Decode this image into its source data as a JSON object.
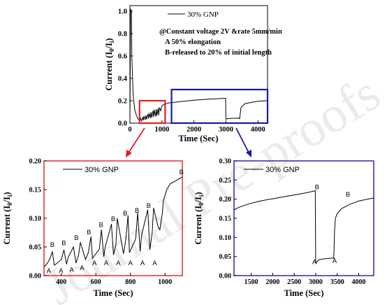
{
  "chart_data": [
    {
      "id": "main",
      "type": "line",
      "legend": "30% GNP",
      "annotations": [
        "@Constant voltage 2V &rate 5mm/min",
        "A  50% elongation",
        "B-released to 20% of initial length"
      ],
      "xlabel": "Time (Sec)",
      "ylabel": "Current (I₀/Iᵢ)",
      "xlim": [
        0,
        4300
      ],
      "ylim": [
        0,
        1.05
      ],
      "xticks": [
        0,
        1000,
        2000,
        3000,
        4000
      ],
      "yticks": [
        0.0,
        0.2,
        0.4,
        0.6,
        0.8,
        1.0
      ],
      "series": [
        {
          "x": [
            0,
            20,
            45,
            60,
            100,
            150,
            200,
            250,
            300,
            330,
            360,
            400,
            420,
            440,
            480,
            500,
            520,
            560,
            580,
            600,
            640,
            660,
            680,
            720,
            740,
            760,
            800,
            820,
            840,
            880,
            900,
            920,
            960,
            990,
            1050,
            1100,
            1200,
            1500,
            2000,
            2500,
            2990,
            3000,
            3050,
            3400,
            3430,
            3470,
            3600,
            4000,
            4300
          ],
          "y": [
            0.0,
            1.02,
            1.0,
            0.6,
            0.25,
            0.12,
            0.07,
            0.04,
            0.02,
            0.045,
            0.02,
            0.05,
            0.025,
            0.06,
            0.03,
            0.07,
            0.035,
            0.08,
            0.04,
            0.09,
            0.045,
            0.1,
            0.05,
            0.11,
            0.055,
            0.12,
            0.06,
            0.125,
            0.065,
            0.13,
            0.07,
            0.14,
            0.11,
            0.15,
            0.165,
            0.17,
            0.18,
            0.19,
            0.205,
            0.215,
            0.222,
            0.035,
            0.04,
            0.045,
            0.04,
            0.14,
            0.175,
            0.195,
            0.2
          ]
        }
      ],
      "highlight_boxes": [
        {
          "color": "#e02020",
          "x_range": [
            300,
            1100
          ],
          "y_range": [
            0,
            0.2
          ]
        },
        {
          "color": "#1a1aa8",
          "x_range": [
            1300,
            4300
          ],
          "y_range": [
            0,
            0.3
          ]
        }
      ]
    },
    {
      "id": "zoom_left",
      "type": "line",
      "legend": "30% GNP",
      "xlabel": "Time (Sec)",
      "ylabel": "Current (I₀/Iᵢ)",
      "xlim": [
        300,
        1100
      ],
      "ylim": [
        0,
        0.2
      ],
      "xticks": [
        400,
        600,
        800,
        1000
      ],
      "yticks": [
        0.0,
        0.05,
        0.1,
        0.15,
        0.2
      ],
      "frame_color": "#e02020",
      "series": [
        {
          "x": [
            300,
            320,
            335,
            348,
            360,
            400,
            415,
            430,
            440,
            470,
            485,
            500,
            510,
            540,
            556,
            572,
            580,
            620,
            632,
            646,
            654,
            690,
            702,
            716,
            724,
            760,
            772,
            786,
            794,
            830,
            842,
            856,
            864,
            900,
            912,
            926,
            934,
            960,
            970,
            985,
            990,
            1000,
            1010,
            1030,
            1060,
            1100
          ],
          "y": [
            0.015,
            0.022,
            0.03,
            0.042,
            0.018,
            0.028,
            0.045,
            0.02,
            0.032,
            0.05,
            0.022,
            0.036,
            0.058,
            0.028,
            0.04,
            0.068,
            0.03,
            0.046,
            0.08,
            0.033,
            0.05,
            0.09,
            0.036,
            0.055,
            0.1,
            0.038,
            0.06,
            0.105,
            0.04,
            0.064,
            0.11,
            0.042,
            0.07,
            0.115,
            0.045,
            0.075,
            0.118,
            0.085,
            0.08,
            0.11,
            0.13,
            0.14,
            0.15,
            0.16,
            0.165,
            0.172
          ]
        }
      ],
      "point_labels": [
        {
          "text": "A",
          "x": 328,
          "y": 0.005
        },
        {
          "text": "B",
          "x": 348,
          "y": 0.05
        },
        {
          "text": "A",
          "x": 398,
          "y": 0.005
        },
        {
          "text": "B",
          "x": 415,
          "y": 0.053
        },
        {
          "text": "A",
          "x": 460,
          "y": 0.007
        },
        {
          "text": "B",
          "x": 488,
          "y": 0.062
        },
        {
          "text": "A",
          "x": 520,
          "y": 0.01
        },
        {
          "text": "B",
          "x": 560,
          "y": 0.072
        },
        {
          "text": "A",
          "x": 592,
          "y": 0.018
        },
        {
          "text": "B",
          "x": 630,
          "y": 0.085
        },
        {
          "text": "A",
          "x": 660,
          "y": 0.018
        },
        {
          "text": "B",
          "x": 700,
          "y": 0.095
        },
        {
          "text": "A",
          "x": 730,
          "y": 0.018
        },
        {
          "text": "B",
          "x": 770,
          "y": 0.105
        },
        {
          "text": "A",
          "x": 800,
          "y": 0.018
        },
        {
          "text": "B",
          "x": 838,
          "y": 0.11
        },
        {
          "text": "A",
          "x": 870,
          "y": 0.018
        },
        {
          "text": "B",
          "x": 905,
          "y": 0.118
        },
        {
          "text": "A",
          "x": 940,
          "y": 0.018
        },
        {
          "text": "B",
          "x": 1095,
          "y": 0.177
        }
      ]
    },
    {
      "id": "zoom_right",
      "type": "line",
      "legend": "30% GNP",
      "xlabel": "Time (Sec)",
      "ylabel": "Current (I₀/Iᵢ)",
      "xlim": [
        1100,
        4350
      ],
      "ylim": [
        0,
        0.3
      ],
      "xticks": [
        1500,
        2000,
        2500,
        3000,
        3500,
        4000
      ],
      "yticks": [
        0.0,
        0.05,
        0.1,
        0.15,
        0.2,
        0.25,
        0.3
      ],
      "frame_color": "#1a1aa8",
      "series": [
        {
          "x": [
            1100,
            1200,
            1400,
            1600,
            1800,
            2000,
            2200,
            2400,
            2600,
            2800,
            2990,
            3000,
            3010,
            3050,
            3100,
            3200,
            3300,
            3400,
            3420,
            3440,
            3460,
            3500,
            3600,
            3800,
            4000,
            4200,
            4350
          ],
          "y": [
            0.172,
            0.178,
            0.186,
            0.192,
            0.197,
            0.201,
            0.205,
            0.209,
            0.213,
            0.217,
            0.222,
            0.035,
            0.032,
            0.04,
            0.042,
            0.044,
            0.045,
            0.046,
            0.045,
            0.12,
            0.15,
            0.162,
            0.175,
            0.187,
            0.195,
            0.2,
            0.203
          ]
        }
      ],
      "point_labels": [
        {
          "text": "B",
          "x": 3030,
          "y": 0.226
        },
        {
          "text": "A",
          "x": 2970,
          "y": 0.03
        },
        {
          "text": "A",
          "x": 3440,
          "y": 0.033
        },
        {
          "text": "B",
          "x": 3750,
          "y": 0.207
        }
      ]
    }
  ],
  "watermark": "Journal Pre-proofs",
  "colors": {
    "line": "#000000",
    "red": "#e02020",
    "blue": "#1a1aa8",
    "watermark": "#e9e9e9"
  }
}
